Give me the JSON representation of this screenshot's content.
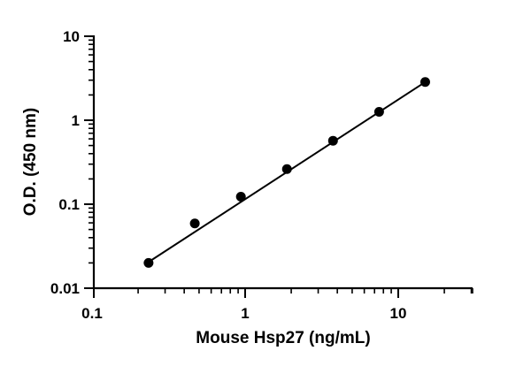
{
  "chart_data": {
    "type": "scatter",
    "xlabel": "Mouse Hsp27 (ng/mL)",
    "ylabel": "O.D. (450 nm)",
    "x_scale": "log",
    "y_scale": "log",
    "xlim": [
      0.1,
      30
    ],
    "ylim": [
      0.01,
      10
    ],
    "x_ticks": [
      {
        "value": 0.1,
        "label": "0.1"
      },
      {
        "value": 1,
        "label": "1"
      },
      {
        "value": 10,
        "label": "10"
      }
    ],
    "y_ticks": [
      {
        "value": 0.01,
        "label": "0.01"
      },
      {
        "value": 0.1,
        "label": "0.1"
      },
      {
        "value": 1,
        "label": "1"
      },
      {
        "value": 10,
        "label": "10"
      }
    ],
    "grid": false,
    "marker_color": "#000000",
    "series": [
      {
        "x": [
          0.234,
          0.469,
          0.938,
          1.875,
          3.75,
          7.5,
          15
        ],
        "y": [
          0.02,
          0.059,
          0.123,
          0.262,
          0.57,
          1.26,
          2.85
        ]
      }
    ],
    "fit_line": {
      "x": [
        0.234,
        15
      ],
      "y": [
        0.0205,
        2.85
      ]
    }
  }
}
